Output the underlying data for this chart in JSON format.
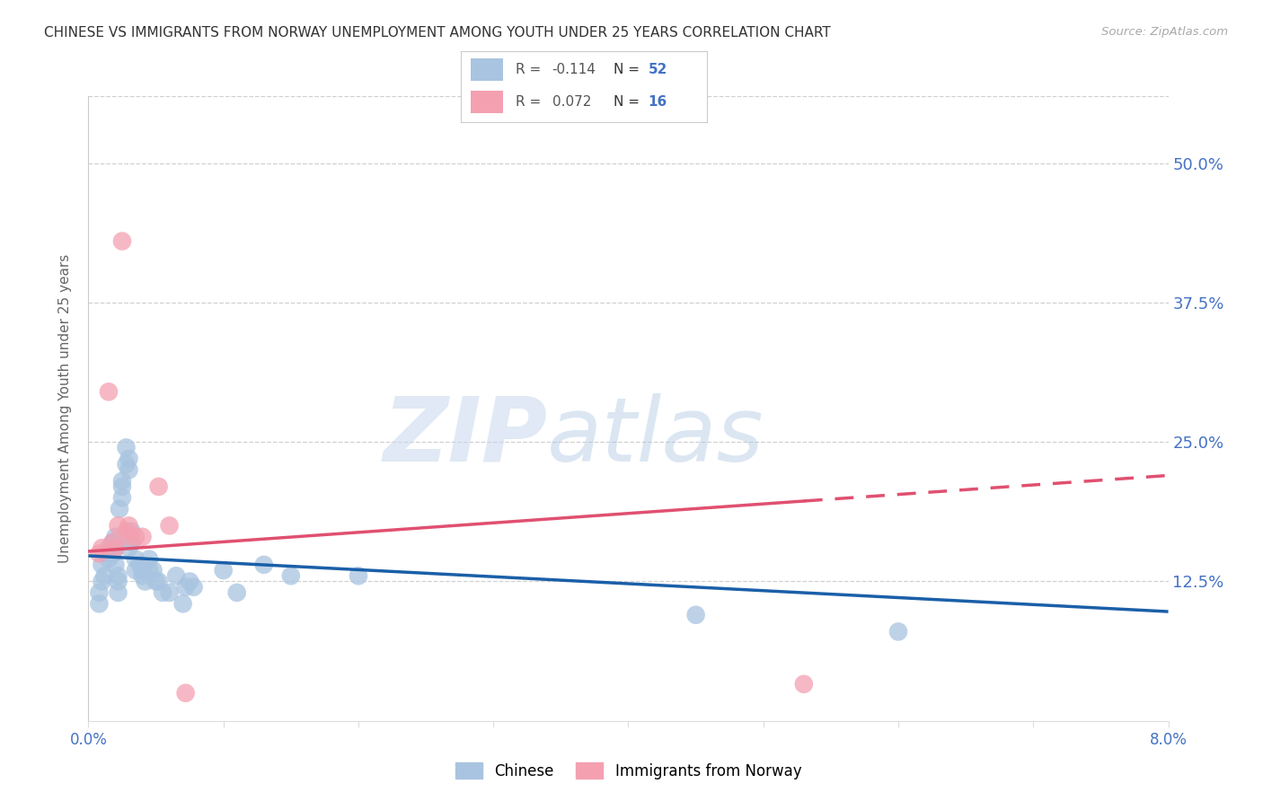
{
  "title": "CHINESE VS IMMIGRANTS FROM NORWAY UNEMPLOYMENT AMONG YOUTH UNDER 25 YEARS CORRELATION CHART",
  "source": "Source: ZipAtlas.com",
  "ylabel": "Unemployment Among Youth under 25 years",
  "ytick_labels": [
    "50.0%",
    "37.5%",
    "25.0%",
    "12.5%"
  ],
  "ytick_values": [
    0.5,
    0.375,
    0.25,
    0.125
  ],
  "xlim": [
    0.0,
    0.08
  ],
  "ylim": [
    0.0,
    0.56
  ],
  "legend_label1": "Chinese",
  "legend_label2": "Immigrants from Norway",
  "R1": -0.114,
  "N1": 52,
  "R2": 0.072,
  "N2": 16,
  "color_chinese": "#a8c4e0",
  "color_norway": "#f4a0b0",
  "line_color_chinese": "#1a5fa8",
  "line_color_norway": "#e05070",
  "background_color": "#ffffff",
  "chinese_x": [
    0.0008,
    0.0008,
    0.001,
    0.001,
    0.0012,
    0.0015,
    0.0015,
    0.0017,
    0.0018,
    0.0018,
    0.002,
    0.002,
    0.002,
    0.0022,
    0.0022,
    0.0022,
    0.0023,
    0.0025,
    0.0025,
    0.0025,
    0.0028,
    0.0028,
    0.003,
    0.003,
    0.003,
    0.0032,
    0.0032,
    0.0035,
    0.0035,
    0.0038,
    0.004,
    0.004,
    0.0042,
    0.0045,
    0.0045,
    0.0048,
    0.005,
    0.0052,
    0.0055,
    0.006,
    0.0065,
    0.007,
    0.0072,
    0.0075,
    0.0078,
    0.01,
    0.011,
    0.013,
    0.015,
    0.02,
    0.045,
    0.06
  ],
  "chinese_y": [
    0.115,
    0.105,
    0.14,
    0.125,
    0.13,
    0.155,
    0.145,
    0.155,
    0.16,
    0.15,
    0.165,
    0.155,
    0.14,
    0.13,
    0.125,
    0.115,
    0.19,
    0.215,
    0.21,
    0.2,
    0.245,
    0.23,
    0.235,
    0.225,
    0.155,
    0.17,
    0.16,
    0.145,
    0.135,
    0.14,
    0.135,
    0.13,
    0.125,
    0.145,
    0.135,
    0.135,
    0.125,
    0.125,
    0.115,
    0.115,
    0.13,
    0.105,
    0.12,
    0.125,
    0.12,
    0.135,
    0.115,
    0.14,
    0.13,
    0.13,
    0.095,
    0.08
  ],
  "norway_x": [
    0.0008,
    0.001,
    0.0015,
    0.0018,
    0.002,
    0.0022,
    0.0025,
    0.0028,
    0.003,
    0.003,
    0.0035,
    0.004,
    0.0052,
    0.006,
    0.0072,
    0.053
  ],
  "norway_y": [
    0.15,
    0.155,
    0.295,
    0.16,
    0.155,
    0.175,
    0.43,
    0.17,
    0.165,
    0.175,
    0.165,
    0.165,
    0.21,
    0.175,
    0.025,
    0.033
  ],
  "line_chinese_x0": 0.0,
  "line_chinese_x1": 0.08,
  "line_chinese_y0": 0.148,
  "line_chinese_y1": 0.098,
  "line_norway_x0": 0.0,
  "line_norway_x1": 0.08,
  "line_norway_y0": 0.152,
  "line_norway_y1": 0.22,
  "line_norway_solid_end": 0.053
}
